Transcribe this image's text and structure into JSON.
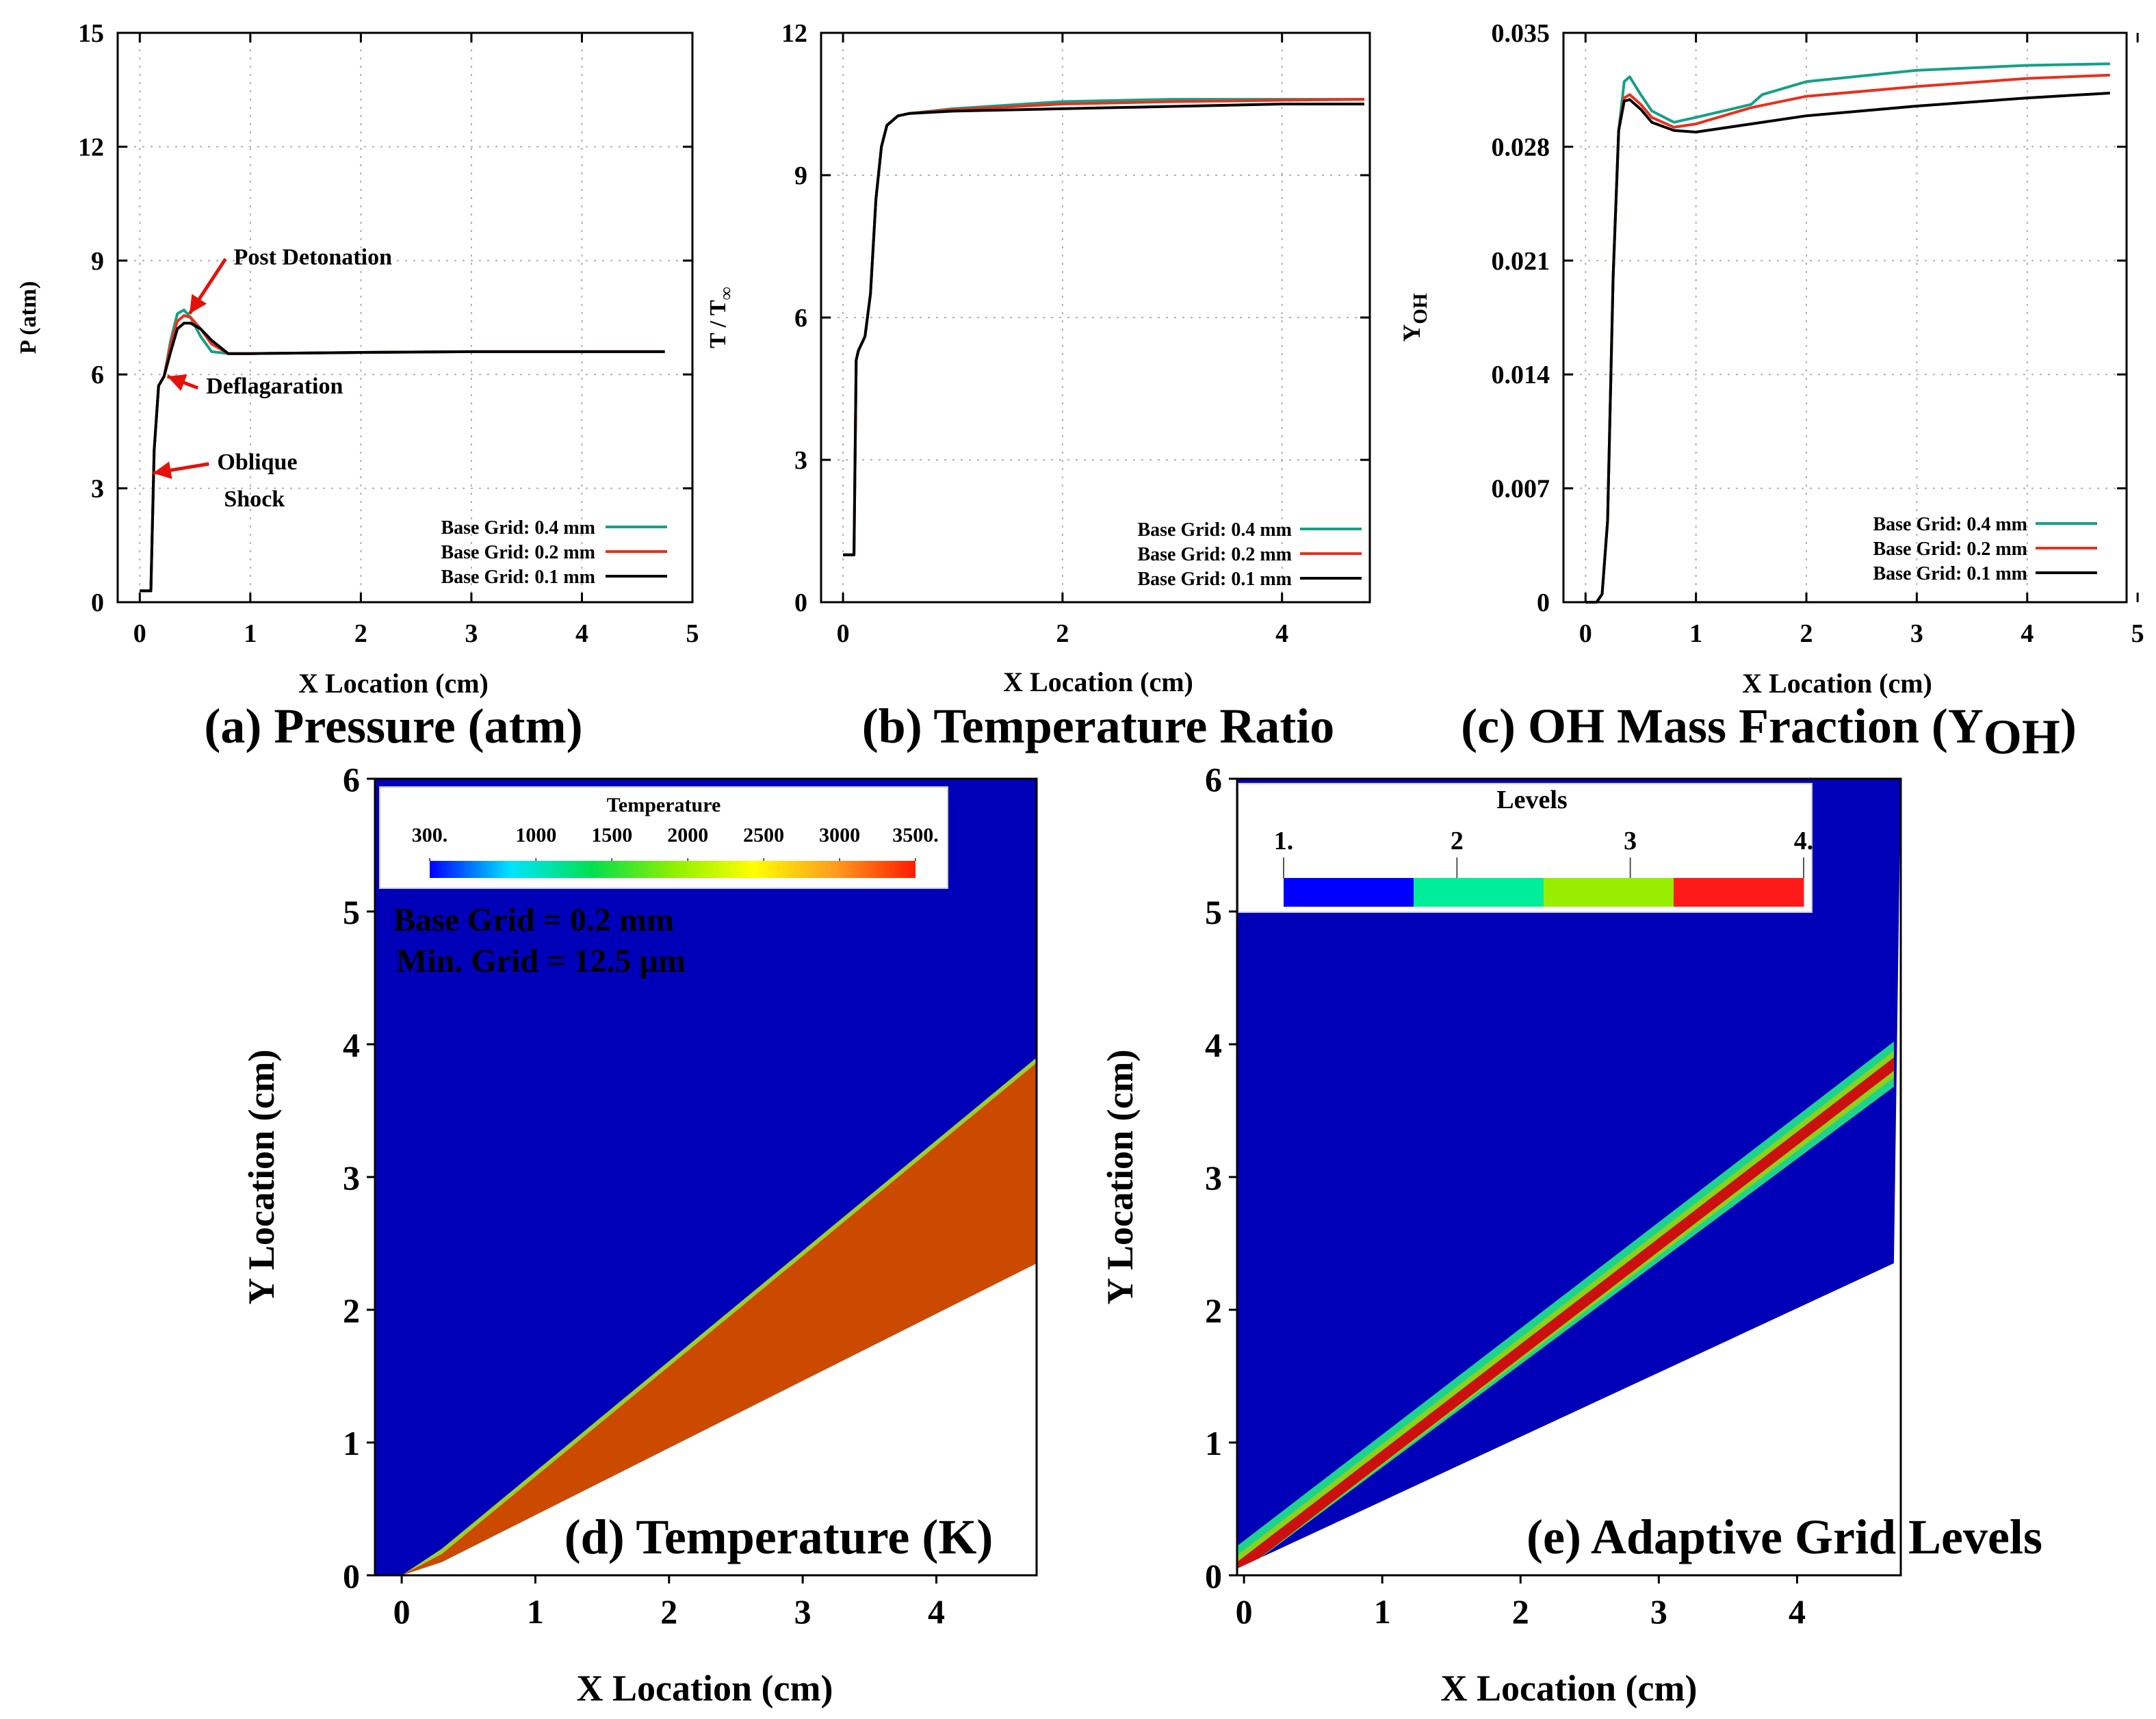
{
  "chart_data": [
    {
      "id": "a",
      "type": "line",
      "caption": "(a) Pressure (atm)",
      "xlabel": "X Location (cm)",
      "ylabel": "P (atm)",
      "xlim": [
        -0.2,
        5
      ],
      "ylim": [
        0,
        15
      ],
      "xticks": [
        0,
        1,
        2,
        3,
        4,
        5
      ],
      "yticks": [
        0,
        3,
        6,
        9,
        12,
        15
      ],
      "ytick_labels": [
        "0",
        "3",
        "6",
        "9",
        "12",
        "15"
      ],
      "grid": true,
      "legend_position": "bottom-right",
      "series": [
        {
          "name": "Base Grid: 0.4 mm",
          "color": "#16a085",
          "x": [
            0,
            0.1,
            0.13,
            0.17,
            0.22,
            0.28,
            0.34,
            0.4,
            0.46,
            0.55,
            0.65,
            0.8,
            1.0,
            2.0,
            3.0,
            4.0,
            4.75
          ],
          "y": [
            0.3,
            0.3,
            4.0,
            5.7,
            5.95,
            6.9,
            7.6,
            7.7,
            7.5,
            7.0,
            6.6,
            6.55,
            6.55,
            6.58,
            6.6,
            6.6,
            6.6
          ]
        },
        {
          "name": "Base Grid: 0.2 mm",
          "color": "#e8301c",
          "x": [
            0,
            0.1,
            0.13,
            0.17,
            0.22,
            0.28,
            0.34,
            0.4,
            0.46,
            0.55,
            0.65,
            0.8,
            1.0,
            2.0,
            3.0,
            4.0,
            4.75
          ],
          "y": [
            0.3,
            0.3,
            4.0,
            5.7,
            5.95,
            6.8,
            7.4,
            7.55,
            7.5,
            7.2,
            6.8,
            6.55,
            6.55,
            6.58,
            6.6,
            6.6,
            6.6
          ]
        },
        {
          "name": "Base Grid: 0.1 mm",
          "color": "#000000",
          "x": [
            0,
            0.1,
            0.13,
            0.17,
            0.22,
            0.28,
            0.34,
            0.4,
            0.46,
            0.55,
            0.65,
            0.8,
            1.0,
            2.0,
            3.0,
            4.0,
            4.75
          ],
          "y": [
            0.3,
            0.3,
            4.0,
            5.7,
            5.95,
            6.6,
            7.2,
            7.35,
            7.35,
            7.2,
            6.9,
            6.55,
            6.55,
            6.58,
            6.6,
            6.6,
            6.6
          ]
        }
      ],
      "annotations": [
        {
          "lines": [
            "Post Detonation"
          ],
          "point": [
            0.45,
            7.6
          ],
          "text_at": [
            0.85,
            8.9
          ]
        },
        {
          "lines": [
            "Deflagaration"
          ],
          "point": [
            0.25,
            5.95
          ],
          "text_at": [
            0.6,
            5.5
          ]
        },
        {
          "lines": [
            "Oblique",
            "Shock"
          ],
          "point": [
            0.12,
            3.4
          ],
          "text_at": [
            0.7,
            3.5
          ]
        }
      ]
    },
    {
      "id": "b",
      "type": "line",
      "caption": "(b) Temperature Ratio",
      "xlabel": "X Location (cm)",
      "ylabel": "T / T",
      "ylabel_subscript": "∞",
      "xlim": [
        -0.2,
        4.8
      ],
      "ylim": [
        0,
        12
      ],
      "xticks": [
        0,
        2,
        4
      ],
      "yticks": [
        0,
        3,
        6,
        9,
        12
      ],
      "ytick_labels": [
        "0",
        "3",
        "6",
        "9",
        "12"
      ],
      "grid": true,
      "legend_position": "bottom-right",
      "series": [
        {
          "name": "Base Grid: 0.4 mm",
          "color": "#16a085",
          "x": [
            0,
            0.1,
            0.12,
            0.14,
            0.2,
            0.25,
            0.3,
            0.35,
            0.4,
            0.5,
            0.6,
            1.0,
            2.0,
            3.0,
            4.0,
            4.75
          ],
          "y": [
            1.0,
            1.0,
            5.1,
            5.3,
            5.6,
            6.5,
            8.5,
            9.6,
            10.05,
            10.25,
            10.3,
            10.4,
            10.55,
            10.6,
            10.6,
            10.6
          ]
        },
        {
          "name": "Base Grid: 0.2 mm",
          "color": "#e8301c",
          "x": [
            0,
            0.1,
            0.12,
            0.14,
            0.2,
            0.25,
            0.3,
            0.35,
            0.4,
            0.5,
            0.6,
            1.0,
            2.0,
            3.0,
            4.0,
            4.75
          ],
          "y": [
            1.0,
            1.0,
            5.1,
            5.3,
            5.6,
            6.5,
            8.5,
            9.6,
            10.05,
            10.25,
            10.3,
            10.38,
            10.5,
            10.55,
            10.58,
            10.6
          ]
        },
        {
          "name": "Base Grid: 0.1 mm",
          "color": "#000000",
          "x": [
            0,
            0.1,
            0.12,
            0.14,
            0.2,
            0.25,
            0.3,
            0.35,
            0.4,
            0.5,
            0.6,
            1.0,
            2.0,
            3.0,
            4.0,
            4.75
          ],
          "y": [
            1.0,
            1.0,
            5.1,
            5.3,
            5.6,
            6.5,
            8.5,
            9.6,
            10.05,
            10.25,
            10.3,
            10.35,
            10.4,
            10.45,
            10.5,
            10.5
          ]
        }
      ]
    },
    {
      "id": "c",
      "type": "line",
      "caption": "(c) OH Mass Fraction (Y",
      "caption_subscript": "OH",
      "caption_end": ")",
      "xlabel": "X Location (cm)",
      "ylabel": "Y",
      "ylabel_subscript": "OH",
      "xlim": [
        -0.2,
        4.9
      ],
      "ylim": [
        0,
        0.035
      ],
      "xticks": [
        0,
        1,
        2,
        3,
        4,
        5
      ],
      "yticks": [
        0,
        0.007,
        0.014,
        0.021,
        0.028,
        0.035
      ],
      "ytick_labels": [
        "0",
        "0.007",
        "0.014",
        "0.021",
        "0.028",
        "0.035"
      ],
      "grid": true,
      "legend_position": "bottom-right",
      "series": [
        {
          "name": "Base Grid: 0.4 mm",
          "color": "#16a085",
          "x": [
            0,
            0.1,
            0.15,
            0.2,
            0.25,
            0.3,
            0.35,
            0.4,
            0.5,
            0.6,
            0.8,
            1.0,
            1.5,
            1.6,
            2.0,
            3.0,
            4.0,
            4.75
          ],
          "y": [
            0,
            0,
            0.0005,
            0.005,
            0.02,
            0.029,
            0.032,
            0.0323,
            0.0312,
            0.0302,
            0.0295,
            0.0298,
            0.0306,
            0.0312,
            0.032,
            0.0327,
            0.033,
            0.0331
          ]
        },
        {
          "name": "Base Grid: 0.2 mm",
          "color": "#e8301c",
          "x": [
            0,
            0.1,
            0.15,
            0.2,
            0.25,
            0.3,
            0.35,
            0.4,
            0.5,
            0.6,
            0.8,
            1.0,
            1.5,
            2.0,
            3.0,
            4.0,
            4.75
          ],
          "y": [
            0,
            0,
            0.0005,
            0.005,
            0.02,
            0.029,
            0.031,
            0.0312,
            0.0306,
            0.0298,
            0.0292,
            0.0294,
            0.0304,
            0.0311,
            0.0317,
            0.0322,
            0.0324
          ]
        },
        {
          "name": "Base Grid: 0.1 mm",
          "color": "#000000",
          "x": [
            0,
            0.1,
            0.15,
            0.2,
            0.25,
            0.3,
            0.35,
            0.4,
            0.5,
            0.6,
            0.8,
            1.0,
            1.5,
            2.0,
            3.0,
            4.0,
            4.75
          ],
          "y": [
            0,
            0,
            0.0005,
            0.005,
            0.02,
            0.029,
            0.0308,
            0.0309,
            0.0303,
            0.0295,
            0.029,
            0.0289,
            0.0294,
            0.0299,
            0.0305,
            0.031,
            0.0313
          ]
        }
      ]
    },
    {
      "id": "d",
      "type": "heatmap",
      "caption": "(d) Temperature (K)",
      "xlabel": "X Location (cm)",
      "ylabel": "Y Location (cm)",
      "xlim": [
        -0.2,
        4.75
      ],
      "ylim": [
        0,
        6
      ],
      "xticks": [
        0,
        1,
        2,
        3,
        4
      ],
      "yticks": [
        0,
        1,
        2,
        3,
        4,
        5,
        6
      ],
      "colorbar": {
        "title": "Temperature",
        "tick_labels": [
          "300.",
          "1000",
          "1500",
          "2000",
          "2500",
          "3000",
          "3500."
        ],
        "tick_values": [
          300,
          1000,
          1500,
          2000,
          2500,
          3000,
          3500
        ],
        "range": [
          300,
          3500
        ],
        "colors": [
          "#0000ff",
          "#00e5ff",
          "#00e04f",
          "#8cf000",
          "#ffff00",
          "#ff9d1e",
          "#ff1a00"
        ]
      },
      "info_lines": [
        "Base Grid = 0.2 mm",
        "Min. Grid = 12.5 µm"
      ],
      "regions": {
        "background_temperature": 300,
        "hot_temperature": 3100,
        "background_color": "#0000b8",
        "hot_color": "#cc4a00",
        "front_color": "#9ccf2e",
        "wedge_surface": [
          [
            0,
            0
          ],
          [
            0.3,
            0.1
          ],
          [
            4.75,
            2.35
          ]
        ],
        "detonation_front": [
          [
            0,
            0
          ],
          [
            0.3,
            0.2
          ],
          [
            4.75,
            3.9
          ]
        ]
      }
    },
    {
      "id": "e",
      "type": "heatmap",
      "caption": "(e) Adaptive Grid Levels",
      "xlabel": "X Location (cm)",
      "ylabel": "Y Location (cm)",
      "xlim": [
        -0.05,
        4.75
      ],
      "ylim": [
        0,
        6
      ],
      "xticks": [
        0,
        1,
        2,
        3,
        4
      ],
      "yticks": [
        0,
        1,
        2,
        3,
        4,
        5,
        6
      ],
      "colorbar": {
        "title": "Levels",
        "tick_labels": [
          "1.",
          "2",
          "3",
          "4."
        ],
        "tick_values": [
          1,
          2,
          3,
          4
        ],
        "range": [
          1,
          4
        ],
        "colors": [
          "#0000ff",
          "#00ee99",
          "#99ee00",
          "#ff1a1a"
        ]
      },
      "regions": {
        "background_color": "#0000b8",
        "level2_color": "#1ed38c",
        "level3_color": "#8cd21a",
        "level4_color": "#cc1010",
        "wedge_surface": [
          [
            -0.05,
            0.05
          ],
          [
            4.7,
            2.35
          ]
        ],
        "refined_band_center": [
          [
            -0.05,
            0.05
          ],
          [
            4.7,
            3.85
          ]
        ],
        "band_half_widths": {
          "level2": 0.17,
          "level3": 0.1,
          "level4": 0.05
        }
      }
    }
  ]
}
